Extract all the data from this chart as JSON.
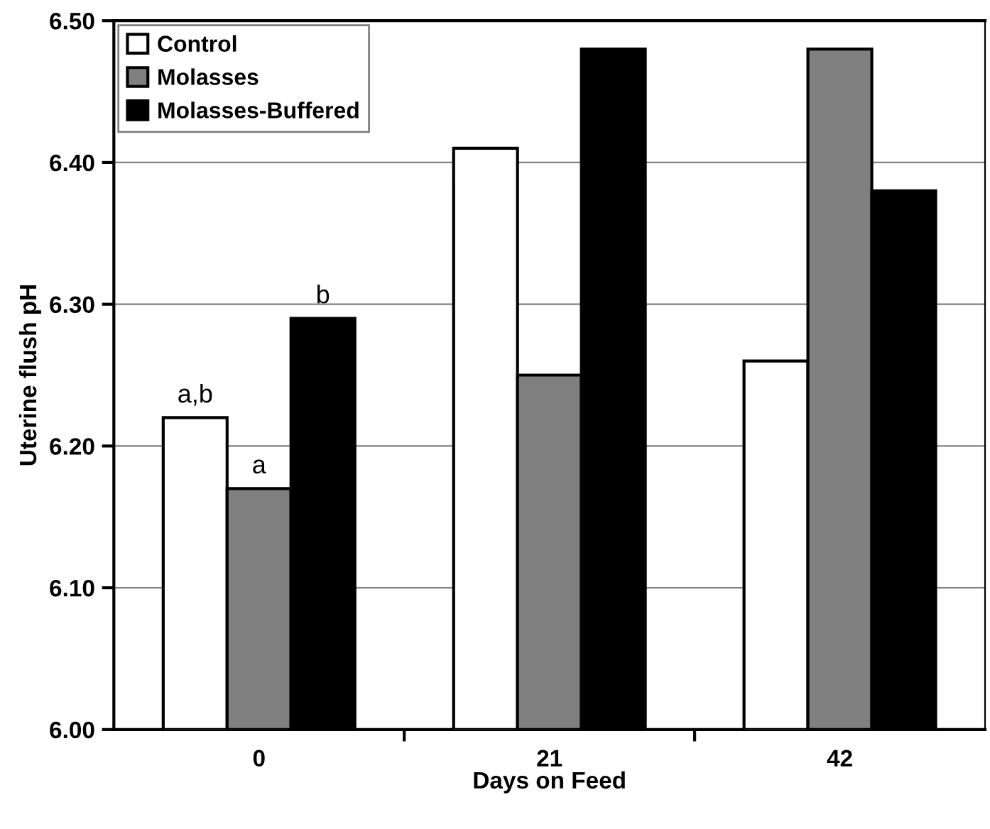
{
  "chart_data": {
    "type": "bar",
    "xlabel": "Days on Feed",
    "ylabel": "Uterine flush pH",
    "categories": [
      "0",
      "21",
      "42"
    ],
    "series": [
      {
        "name": "Control",
        "color": "#ffffff",
        "values": [
          6.22,
          6.41,
          6.26
        ]
      },
      {
        "name": "Molasses",
        "color": "#808080",
        "values": [
          6.17,
          6.25,
          6.48
        ]
      },
      {
        "name": "Molasses-Buffered",
        "color": "#000000",
        "values": [
          6.29,
          6.48,
          6.38
        ]
      }
    ],
    "ylim": [
      6.0,
      6.5
    ],
    "yticks": [
      {
        "value": 6.0,
        "label": "6.00"
      },
      {
        "value": 6.1,
        "label": "6.10"
      },
      {
        "value": 6.2,
        "label": "6.20"
      },
      {
        "value": 6.3,
        "label": "6.30"
      },
      {
        "value": 6.4,
        "label": "6.40"
      },
      {
        "value": 6.5,
        "label": "6.50"
      }
    ],
    "grid": "y",
    "legend": "upper left",
    "annotations": [
      "a,b",
      "a",
      "b"
    ]
  }
}
